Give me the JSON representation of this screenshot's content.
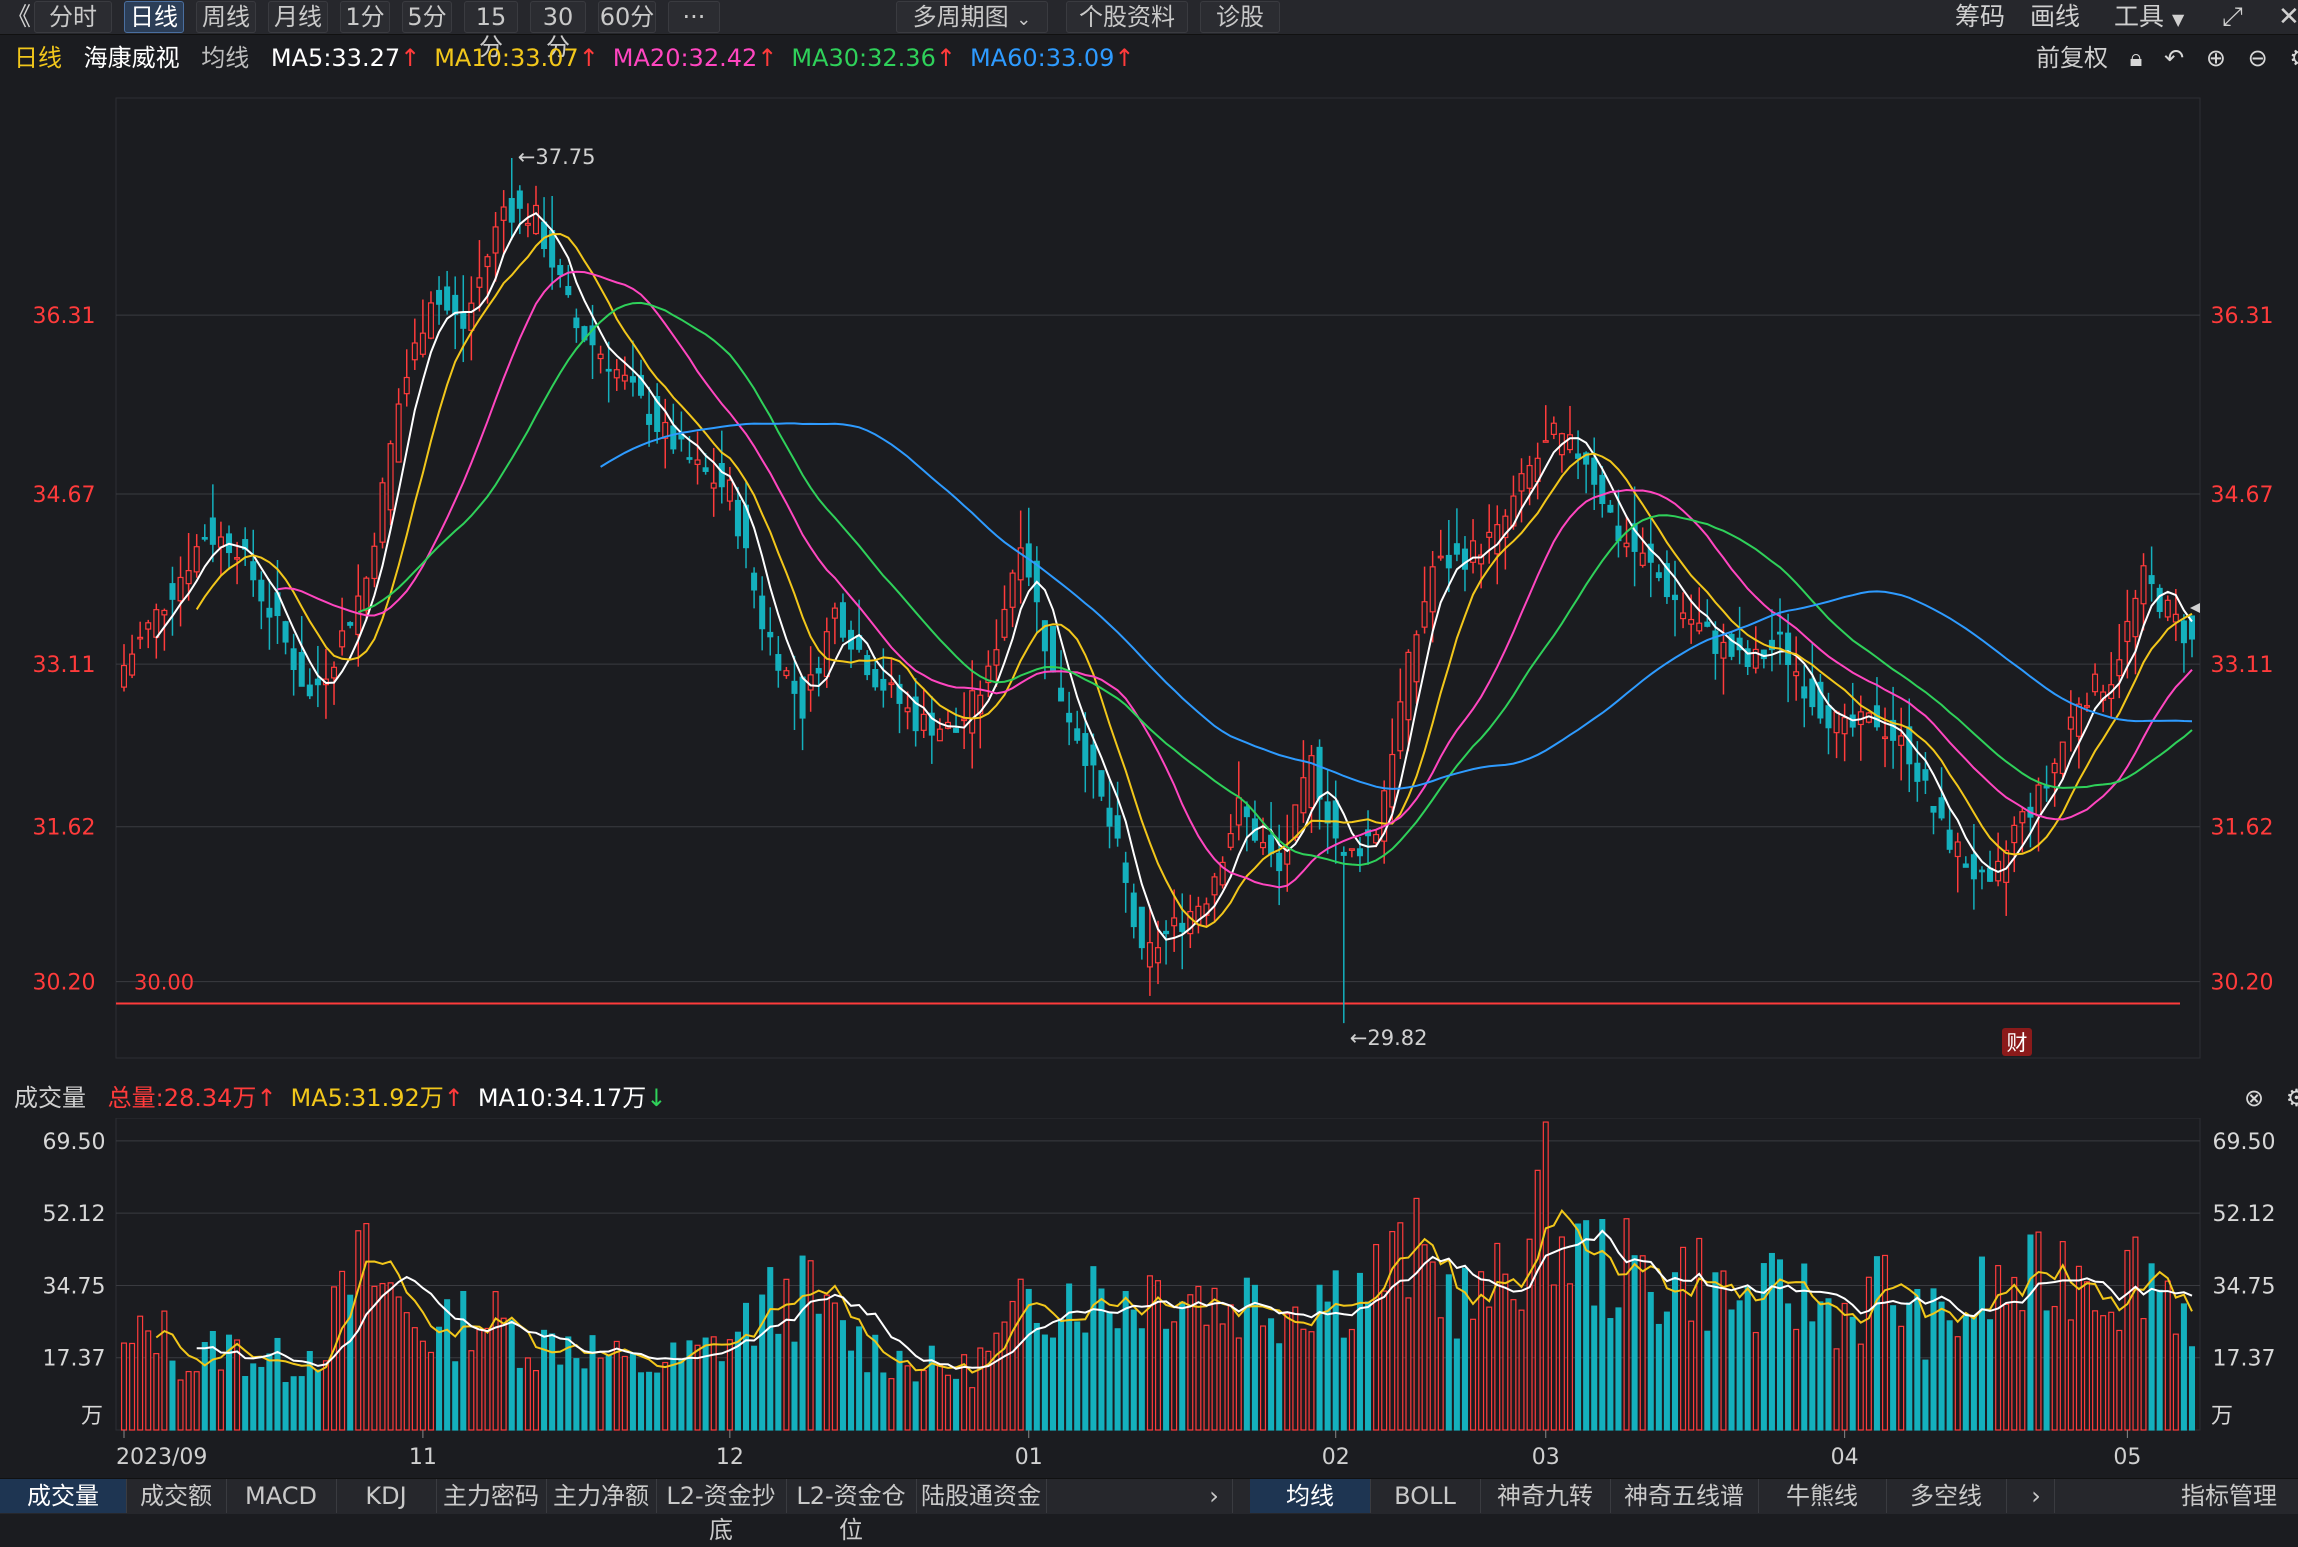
{
  "toolbar": {
    "back": "《",
    "periods": [
      "分时",
      "日线",
      "周线",
      "月线",
      "1分",
      "5分",
      "15分",
      "30分",
      "60分",
      "···"
    ],
    "active_period": "日线",
    "multi_period": "多周期图",
    "chevron": "chevron-down-icon",
    "stock_info": "个股资料",
    "diagnose": "诊股",
    "right": {
      "chips": "筹码",
      "draw": "画线",
      "tools": "工具",
      "fullscreen": "fullscreen-icon"
    }
  },
  "price_legend": {
    "period": "日线",
    "stock": "海康威视",
    "ma_label": "均线",
    "items": [
      {
        "text": "MA5:33.27",
        "color": "#ffffff",
        "arrow": "↑",
        "arrow_color": "#ff3b3b"
      },
      {
        "text": "MA10:33.07",
        "color": "#f2c71b",
        "arrow": "↑",
        "arrow_color": "#ff3b3b"
      },
      {
        "text": "MA20:32.42",
        "color": "#ff46c0",
        "arrow": "↑",
        "arrow_color": "#ff3b3b"
      },
      {
        "text": "MA30:32.36",
        "color": "#2fd15a",
        "arrow": "↑",
        "arrow_color": "#ff3b3b"
      },
      {
        "text": "MA60:33.09",
        "color": "#2e9bff",
        "arrow": "↑",
        "arrow_color": "#ff3b3b"
      }
    ],
    "adjust": "前复权",
    "icons": [
      "lock-icon",
      "undo-icon",
      "zoom-in-icon",
      "zoom-out-icon",
      "settings-icon"
    ]
  },
  "volume_legend": {
    "label": "成交量",
    "items": [
      {
        "text": "总量:28.34万",
        "color": "#ff3b3b",
        "arrow": "↑",
        "arrow_color": "#ff3b3b"
      },
      {
        "text": "MA5:31.92万",
        "color": "#f2c71b",
        "arrow": "↑",
        "arrow_color": "#ff3b3b"
      },
      {
        "text": "MA10:34.17万",
        "color": "#ffffff",
        "arrow": "↓",
        "arrow_color": "#2fd15a"
      }
    ],
    "icons": [
      "close-icon",
      "settings-icon"
    ]
  },
  "colors": {
    "up": "#ff3b3b",
    "down": "#14b0bd",
    "grid": "#3a3b40",
    "axis_text": "#ff3b3b",
    "vol_axis_text": "#d7d7d7"
  },
  "chart_data": [
    {
      "type": "candlestick",
      "title": "海康威视 日线",
      "ylim": [
        29.5,
        38.3
      ],
      "y_ticks": [
        36.31,
        34.67,
        33.11,
        31.62,
        30.2
      ],
      "x_ticks": [
        {
          "index": 0,
          "label": "2023/09"
        },
        {
          "index": 37,
          "label": "11"
        },
        {
          "index": 75,
          "label": "12"
        },
        {
          "index": 112,
          "label": "01"
        },
        {
          "index": 150,
          "label": "02"
        },
        {
          "index": 176,
          "label": "03"
        },
        {
          "index": 213,
          "label": "04"
        },
        {
          "index": 248,
          "label": "05"
        }
      ],
      "annotations": [
        {
          "text": "←37.75",
          "index": 48,
          "value": 37.75
        },
        {
          "text": "←29.82",
          "index": 151,
          "value": 29.82
        },
        {
          "text": "30.00",
          "value": 30.0
        },
        {
          "text": "财"
        }
      ],
      "keyframes": [
        [
          0,
          33.1
        ],
        [
          6,
          33.8
        ],
        [
          10,
          34.3
        ],
        [
          14,
          34.2
        ],
        [
          20,
          33.3
        ],
        [
          23,
          32.8
        ],
        [
          26,
          33.2
        ],
        [
          30,
          33.9
        ],
        [
          34,
          35.5
        ],
        [
          38,
          36.5
        ],
        [
          42,
          36.2
        ],
        [
          47,
          37.3
        ],
        [
          51,
          37.2
        ],
        [
          56,
          36.2
        ],
        [
          60,
          35.9
        ],
        [
          66,
          35.3
        ],
        [
          71,
          34.9
        ],
        [
          75,
          34.7
        ],
        [
          79,
          33.5
        ],
        [
          84,
          32.7
        ],
        [
          88,
          33.6
        ],
        [
          93,
          33.0
        ],
        [
          98,
          32.6
        ],
        [
          103,
          32.5
        ],
        [
          107,
          33.0
        ],
        [
          111,
          34.3
        ],
        [
          115,
          33.0
        ],
        [
          119,
          32.3
        ],
        [
          123,
          31.4
        ],
        [
          126,
          30.4
        ],
        [
          130,
          30.7
        ],
        [
          134,
          31.0
        ],
        [
          138,
          31.8
        ],
        [
          143,
          31.2
        ],
        [
          147,
          32.2
        ],
        [
          151,
          31.3
        ],
        [
          155,
          31.6
        ],
        [
          159,
          33.1
        ],
        [
          162,
          34.0
        ],
        [
          166,
          34.1
        ],
        [
          170,
          34.3
        ],
        [
          174,
          34.9
        ],
        [
          177,
          35.2
        ],
        [
          181,
          35.0
        ],
        [
          185,
          34.3
        ],
        [
          189,
          34.0
        ],
        [
          193,
          33.6
        ],
        [
          197,
          33.3
        ],
        [
          201,
          33.1
        ],
        [
          205,
          33.3
        ],
        [
          209,
          32.8
        ],
        [
          213,
          32.5
        ],
        [
          217,
          32.6
        ],
        [
          221,
          32.3
        ],
        [
          225,
          31.6
        ],
        [
          228,
          31.3
        ],
        [
          231,
          31.0
        ],
        [
          234,
          31.6
        ],
        [
          238,
          32.0
        ],
        [
          242,
          32.8
        ],
        [
          246,
          33.0
        ],
        [
          250,
          33.9
        ],
        [
          253,
          33.6
        ],
        [
          256,
          33.3
        ]
      ],
      "series": [
        {
          "name": "MA5",
          "color": "#ffffff",
          "period": 5
        },
        {
          "name": "MA10",
          "color": "#f2c71b",
          "period": 10
        },
        {
          "name": "MA20",
          "color": "#ff46c0",
          "period": 20
        },
        {
          "name": "MA30",
          "color": "#2fd15a",
          "period": 30
        },
        {
          "name": "MA60",
          "color": "#2e9bff",
          "period": 60
        }
      ]
    },
    {
      "type": "bar",
      "title": "成交量",
      "unit": "万",
      "ylim": [
        0,
        75
      ],
      "y_ticks": [
        69.5,
        52.12,
        34.75,
        17.37
      ],
      "keyframes": [
        [
          0,
          18
        ],
        [
          4,
          25
        ],
        [
          8,
          15
        ],
        [
          12,
          20
        ],
        [
          16,
          18
        ],
        [
          20,
          16
        ],
        [
          24,
          20
        ],
        [
          27,
          30
        ],
        [
          29,
          40
        ],
        [
          32,
          35
        ],
        [
          35,
          28
        ],
        [
          39,
          22
        ],
        [
          43,
          28
        ],
        [
          47,
          25
        ],
        [
          51,
          20
        ],
        [
          55,
          22
        ],
        [
          59,
          18
        ],
        [
          63,
          15
        ],
        [
          67,
          16
        ],
        [
          71,
          18
        ],
        [
          75,
          22
        ],
        [
          80,
          30
        ],
        [
          84,
          33
        ],
        [
          88,
          25
        ],
        [
          92,
          20
        ],
        [
          96,
          17
        ],
        [
          100,
          15
        ],
        [
          104,
          14
        ],
        [
          108,
          20
        ],
        [
          112,
          30
        ],
        [
          116,
          34
        ],
        [
          120,
          33
        ],
        [
          124,
          32
        ],
        [
          128,
          35
        ],
        [
          132,
          34
        ],
        [
          136,
          30
        ],
        [
          140,
          32
        ],
        [
          144,
          30
        ],
        [
          148,
          34
        ],
        [
          152,
          33
        ],
        [
          156,
          38
        ],
        [
          160,
          42
        ],
        [
          164,
          33
        ],
        [
          168,
          30
        ],
        [
          172,
          38
        ],
        [
          176,
          55
        ],
        [
          178,
          45
        ],
        [
          182,
          40
        ],
        [
          186,
          38
        ],
        [
          190,
          35
        ],
        [
          194,
          38
        ],
        [
          198,
          32
        ],
        [
          202,
          30
        ],
        [
          206,
          33
        ],
        [
          210,
          30
        ],
        [
          214,
          28
        ],
        [
          218,
          35
        ],
        [
          222,
          26
        ],
        [
          226,
          25
        ],
        [
          230,
          32
        ],
        [
          234,
          34
        ],
        [
          238,
          36
        ],
        [
          242,
          40
        ],
        [
          246,
          34
        ],
        [
          250,
          40
        ],
        [
          254,
          32
        ],
        [
          256,
          28
        ]
      ],
      "series": [
        {
          "name": "MA5",
          "color": "#f2c71b",
          "period": 5
        },
        {
          "name": "MA10",
          "color": "#ffffff",
          "period": 10
        }
      ]
    }
  ],
  "bottom_tabs_left": [
    "成交量",
    "成交额",
    "MACD",
    "KDJ",
    "主力密码",
    "主力净额",
    "L2-资金抄底",
    "L2-资金仓位",
    "陆股通资金"
  ],
  "bottom_tabs_right": [
    "均线",
    "BOLL",
    "神奇九转",
    "神奇五线谱",
    "牛熊线",
    "多空线"
  ],
  "bottom_more": "chevron-right-icon",
  "indicator_manage": "指标管理"
}
